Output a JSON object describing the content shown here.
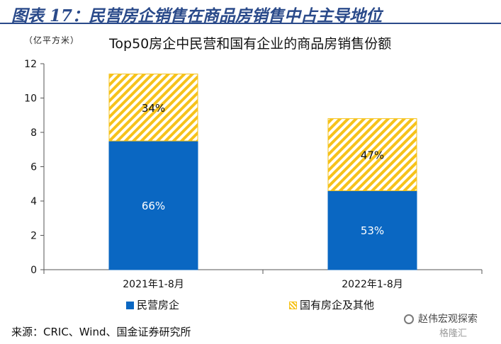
{
  "figure_title": "图表 17：民营房企销售在商品房销售中占主导地位",
  "unit_label": "（亿平方米）",
  "source": "来源：CRIC、Wind、国金证券研究所",
  "watermark": "赵伟宏观探索",
  "watermark2": "格隆汇",
  "colors": {
    "private": "#0a67c2",
    "state": "#f6c21a",
    "title": "#2a4a8a"
  },
  "chart_data": {
    "type": "bar",
    "stacked": true,
    "title": "Top50房企中民营和国有企业的商品房销售份额",
    "categories": [
      "2021年1-8月",
      "2022年1-8月"
    ],
    "series": [
      {
        "name": "民营房企",
        "values": [
          7.5,
          4.6
        ],
        "labels": [
          "66%",
          "53%"
        ]
      },
      {
        "name": "国有房企及其他",
        "values": [
          3.9,
          4.2
        ],
        "labels": [
          "34%",
          "47%"
        ]
      }
    ],
    "ylim": [
      0,
      12
    ],
    "yticks": [
      "0",
      "2",
      "4",
      "6",
      "8",
      "10",
      "12"
    ],
    "legend_position": "bottom"
  }
}
